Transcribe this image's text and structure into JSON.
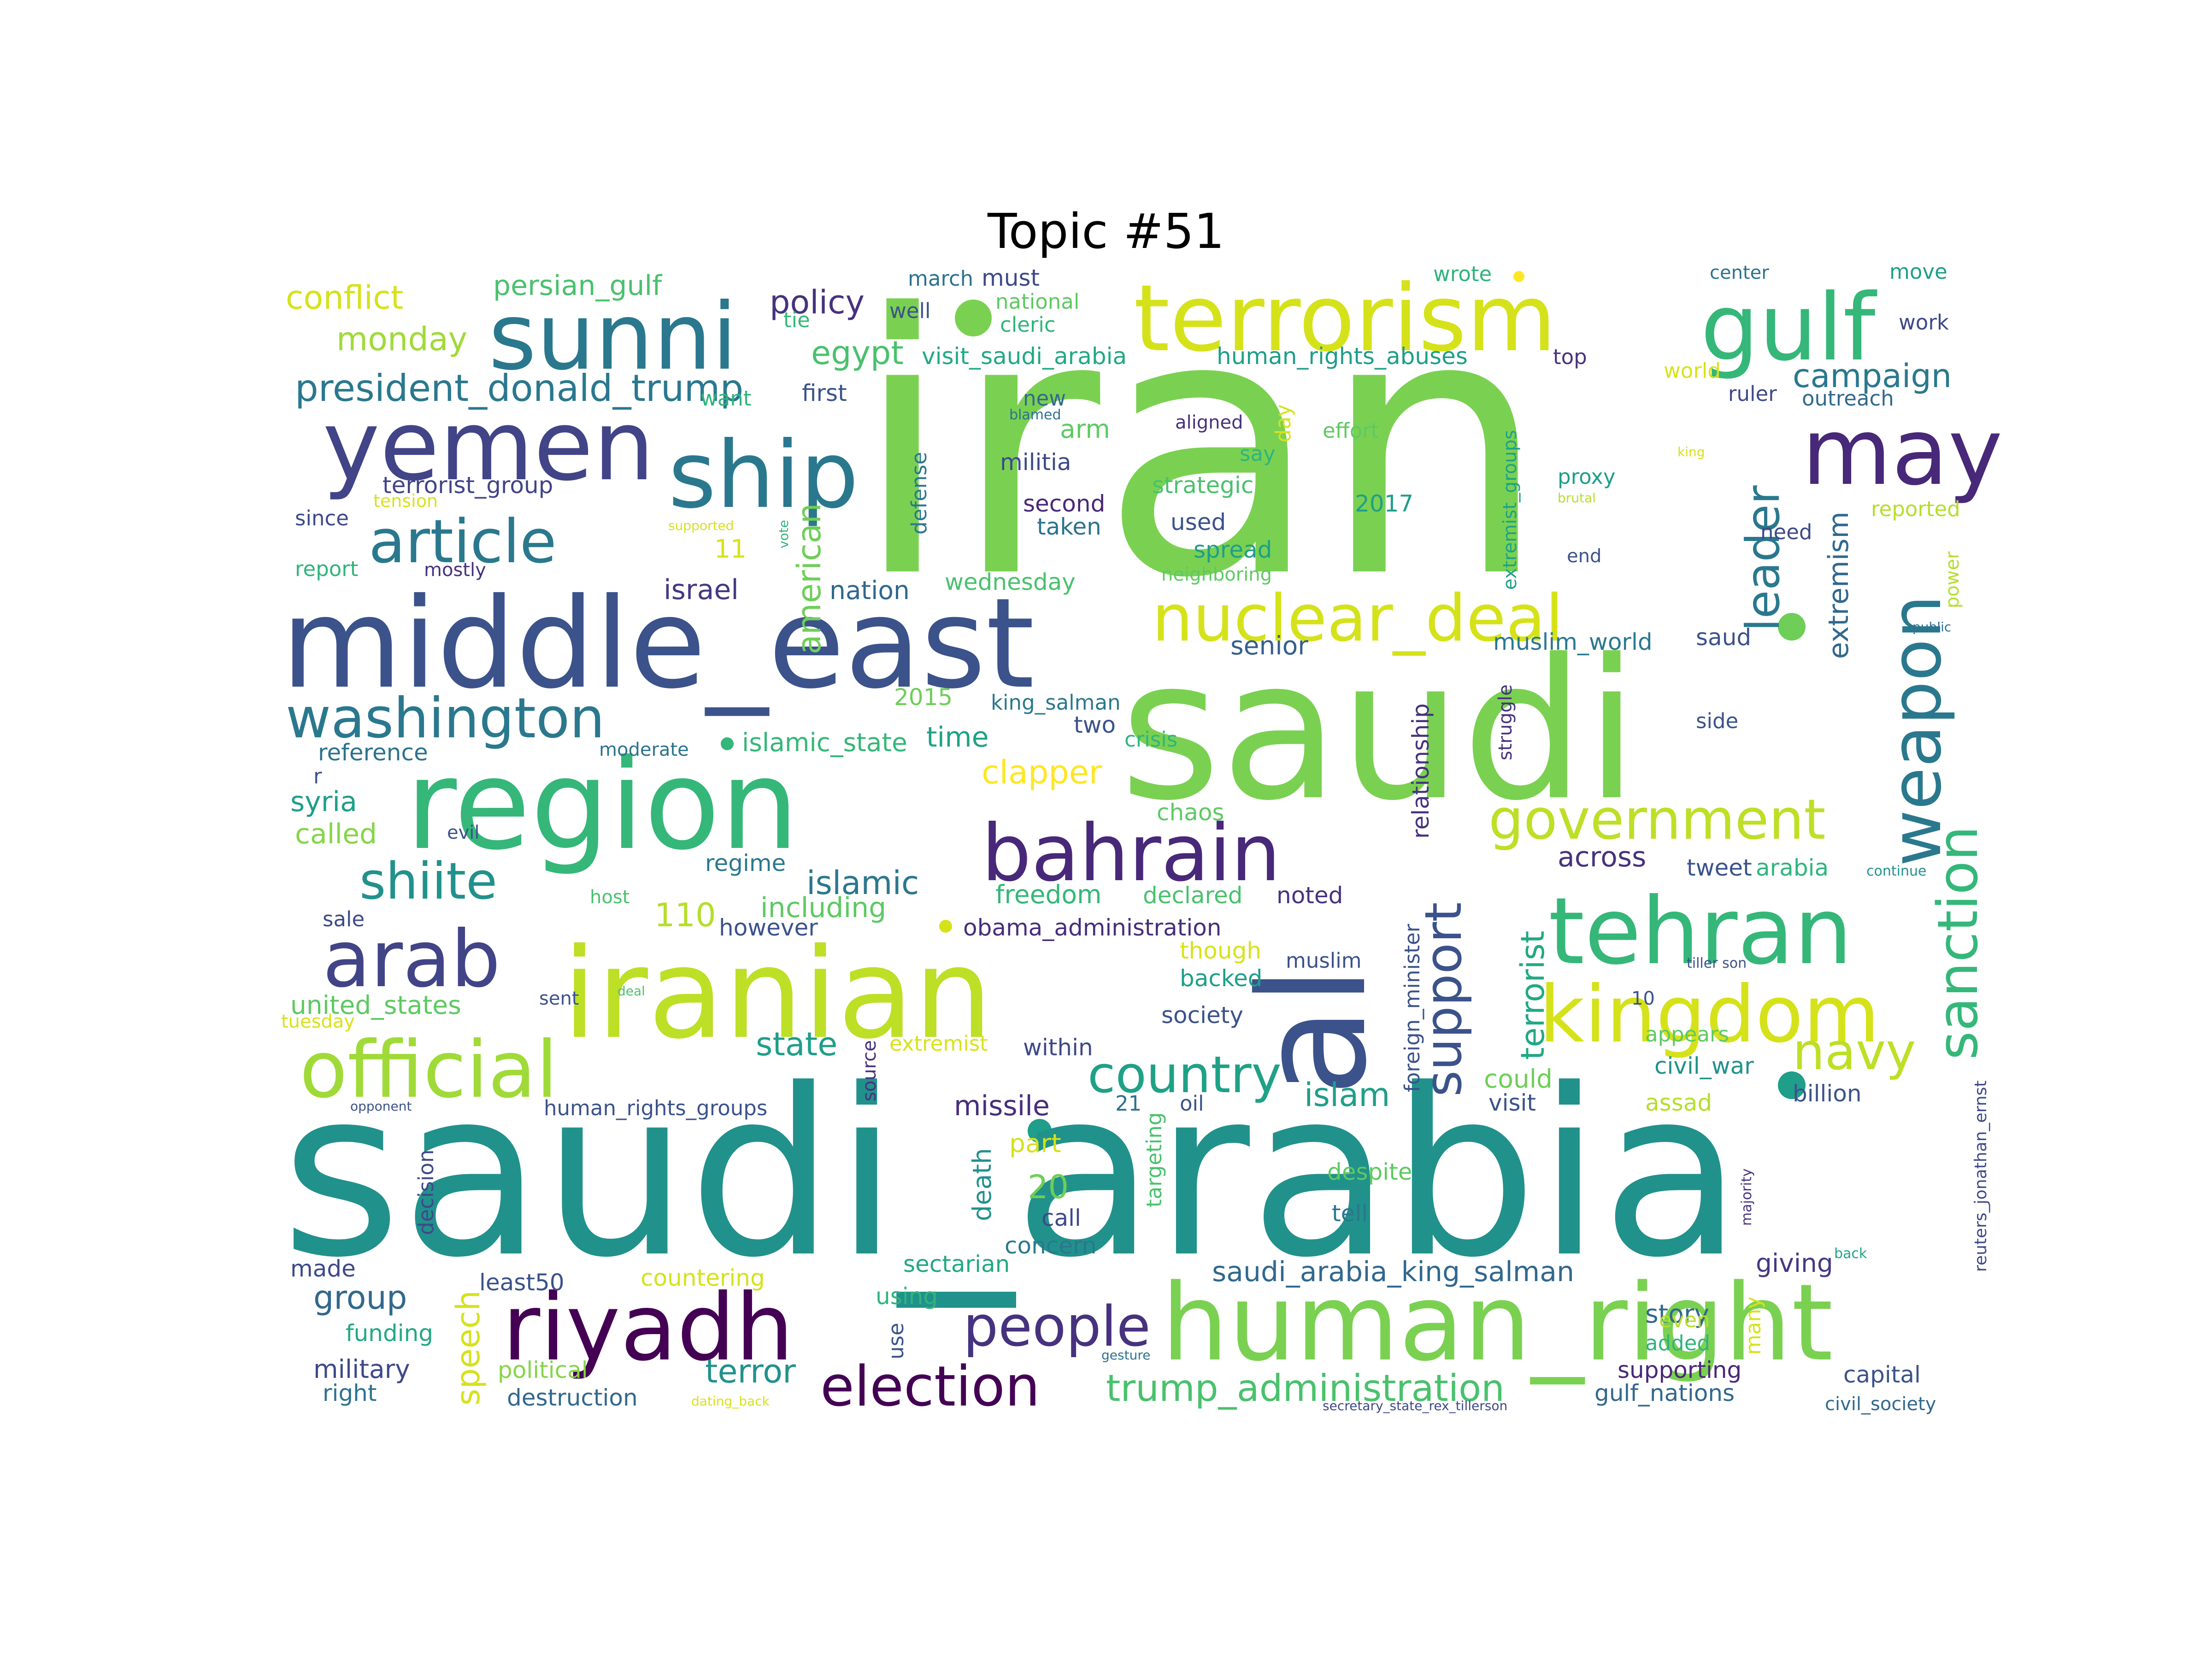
{
  "title": "Topic #51",
  "words": [
    {
      "text": "iran",
      "color": "#7ad151",
      "rot": 0
    },
    {
      "text": "saudi_arabia",
      "color": "#21918c",
      "rot": 0
    },
    {
      "text": "saudi",
      "color": "#7ad151",
      "rot": 0
    },
    {
      "text": "middle_east",
      "color": "#3b528b",
      "rot": 0
    },
    {
      "text": "region",
      "color": "#35b779",
      "rot": 0
    },
    {
      "text": "iranian",
      "color": "#bddf26",
      "rot": 0
    },
    {
      "text": "human_right",
      "color": "#7ad151",
      "rot": 0
    },
    {
      "text": "al",
      "color": "#3b528b",
      "rot": -90
    },
    {
      "text": "terrorism",
      "color": "#d5e21a",
      "rot": 0
    },
    {
      "text": "yemen",
      "color": "#414487",
      "rot": 0
    },
    {
      "text": "sunni",
      "color": "#2a788e",
      "rot": 0
    },
    {
      "text": "ship",
      "color": "#2a788e",
      "rot": 0
    },
    {
      "text": "gulf",
      "color": "#35b779",
      "rot": 0
    },
    {
      "text": "may",
      "color": "#482878",
      "rot": 0
    },
    {
      "text": "riyadh",
      "color": "#440154",
      "rot": 0
    },
    {
      "text": "official",
      "color": "#a0da39",
      "rot": 0
    },
    {
      "text": "arab",
      "color": "#414487",
      "rot": 0
    },
    {
      "text": "tehran",
      "color": "#35b779",
      "rot": 0
    },
    {
      "text": "bahrain",
      "color": "#482878",
      "rot": 0
    },
    {
      "text": "kingdom",
      "color": "#d5e21a",
      "rot": 0
    },
    {
      "text": "nuclear_deal",
      "color": "#d5e21a",
      "rot": 0
    },
    {
      "text": "weapon",
      "color": "#2a788e",
      "rot": -90
    },
    {
      "text": "sanction",
      "color": "#35b779",
      "rot": -90
    },
    {
      "text": "article",
      "color": "#2a788e",
      "rot": 0
    },
    {
      "text": "washington",
      "color": "#2a788e",
      "rot": 0
    },
    {
      "text": "government",
      "color": "#bddf26",
      "rot": 0
    },
    {
      "text": "election",
      "color": "#440154",
      "rot": 0
    },
    {
      "text": "people",
      "color": "#46327e",
      "rot": 0
    },
    {
      "text": "country",
      "color": "#1fa187",
      "rot": 0
    },
    {
      "text": "navy",
      "color": "#bddf26",
      "rot": 0
    },
    {
      "text": "shiite",
      "color": "#21918c",
      "rot": 0
    },
    {
      "text": "support",
      "color": "#3b528b",
      "rot": -90
    },
    {
      "text": "leader",
      "color": "#2a788e",
      "rot": -90
    },
    {
      "text": "president_donald_trump",
      "color": "#2a788e",
      "rot": 0
    },
    {
      "text": "trump_administration",
      "color": "#4ac16d",
      "rot": 0
    },
    {
      "text": "saudi_arabia_king_salman",
      "color": "#31688e",
      "rot": 0
    },
    {
      "text": "islamic",
      "color": "#2a788e",
      "rot": 0
    },
    {
      "text": "policy",
      "color": "#46327e",
      "rot": 0
    },
    {
      "text": "campaign",
      "color": "#2a788e",
      "rot": 0
    },
    {
      "text": "conflict",
      "color": "#d5e21a",
      "rot": 0
    },
    {
      "text": "monday",
      "color": "#a0da39",
      "rot": 0
    },
    {
      "text": "persian_gulf",
      "color": "#4ac16d",
      "rot": 0
    },
    {
      "text": "egypt",
      "color": "#4ac16d",
      "rot": 0
    },
    {
      "text": "american",
      "color": "#6ece58",
      "rot": -90
    },
    {
      "text": "terrorist",
      "color": "#22a884",
      "rot": -90
    },
    {
      "text": "extremism",
      "color": "#31688e",
      "rot": -90
    },
    {
      "text": "islam",
      "color": "#1f9e89",
      "rot": 0
    },
    {
      "text": "group",
      "color": "#31688e",
      "rot": 0
    },
    {
      "text": "terror",
      "color": "#21918c",
      "rot": 0
    },
    {
      "text": "speech",
      "color": "#d5e21a",
      "rot": -90
    },
    {
      "text": "clapper",
      "color": "#fde725",
      "rot": 0
    },
    {
      "text": "time",
      "color": "#1fa187",
      "rot": 0
    },
    {
      "text": "across",
      "color": "#46327e",
      "rot": 0
    },
    {
      "text": "missile",
      "color": "#472d7b",
      "rot": 0
    },
    {
      "text": "state",
      "color": "#1f9e89",
      "rot": 0
    },
    {
      "text": "freedom",
      "color": "#35b779",
      "rot": 0
    },
    {
      "text": "20",
      "color": "#6ece58",
      "rot": 0
    },
    {
      "text": "110",
      "color": "#b5de2b",
      "rot": 0
    },
    {
      "text": "including",
      "color": "#5ec962",
      "rot": 0
    },
    {
      "text": "story",
      "color": "#31688e",
      "rot": 0
    },
    {
      "text": "giving",
      "color": "#443983",
      "rot": 0
    },
    {
      "text": "supporting",
      "color": "#482878",
      "rot": 0
    },
    {
      "text": "gulf_nations",
      "color": "#31688e",
      "rot": 0
    },
    {
      "text": "death",
      "color": "#21918c",
      "rot": -90
    },
    {
      "text": "united_states",
      "color": "#5ec962",
      "rot": 0
    },
    {
      "text": "military",
      "color": "#3e4989",
      "rot": 0
    },
    {
      "text": "funding",
      "color": "#22a884",
      "rot": 0
    },
    {
      "text": "syria",
      "color": "#1f9e89",
      "rot": 0
    },
    {
      "text": "called",
      "color": "#86d549",
      "rot": 0
    },
    {
      "text": "reference",
      "color": "#2c728e",
      "rot": 0
    },
    {
      "text": "foreign_minister",
      "color": "#3b528b",
      "rot": -90
    },
    {
      "text": "relationship",
      "color": "#46327e",
      "rot": -90
    },
    {
      "text": "extremist_groups",
      "color": "#1fa187",
      "rot": -90
    },
    {
      "text": "reuters_jonathan_ernst",
      "color": "#3e4989",
      "rot": -90
    },
    {
      "text": "muslim_world",
      "color": "#2a788e",
      "rot": 0
    },
    {
      "text": "senior",
      "color": "#355f8d",
      "rot": 0
    },
    {
      "text": "king_salman",
      "color": "#2a788e",
      "rot": 0
    },
    {
      "text": "islamic_state",
      "color": "#35b779",
      "rot": 0
    },
    {
      "text": "obama_administration",
      "color": "#472d7b",
      "rot": 0
    },
    {
      "text": "visit_saudi_arabia",
      "color": "#22a884",
      "rot": 0
    },
    {
      "text": "human_rights_abuses",
      "color": "#1f9e89",
      "rot": 0
    },
    {
      "text": "terrorist_group",
      "color": "#414487",
      "rot": 0
    },
    {
      "text": "human_rights_groups",
      "color": "#3b528b",
      "rot": 0
    },
    {
      "text": "secretary_state_rex_tillerson",
      "color": "#3e4989",
      "rot": 0
    },
    {
      "text": "dating_back",
      "color": "#d8e219",
      "rot": 0
    },
    {
      "text": "gesture",
      "color": "#2c728e",
      "rot": 0
    },
    {
      "text": "civil_society",
      "color": "#31688e",
      "rot": 0
    },
    {
      "text": "civil_war",
      "color": "#21918c",
      "rot": 0
    },
    {
      "text": "capital",
      "color": "#3b528b",
      "rot": 0
    },
    {
      "text": "destruction",
      "color": "#31688e",
      "rot": 0
    },
    {
      "text": "political",
      "color": "#86d549",
      "rot": 0
    },
    {
      "text": "right",
      "color": "#2c728e",
      "rot": 0
    },
    {
      "text": "least50",
      "color": "#3b528b",
      "rot": 0
    },
    {
      "text": "countering",
      "color": "#d5e21a",
      "rot": 0
    },
    {
      "text": "sectarian",
      "color": "#22a884",
      "rot": 0
    },
    {
      "text": "using",
      "color": "#2fb47c",
      "rot": 0
    },
    {
      "text": "use",
      "color": "#3b528b",
      "rot": -90
    },
    {
      "text": "made",
      "color": "#3e4989",
      "rot": 0
    },
    {
      "text": "decision",
      "color": "#3e4989",
      "rot": -90
    },
    {
      "text": "concern",
      "color": "#2a788e",
      "rot": 0
    },
    {
      "text": "call",
      "color": "#3e4989",
      "rot": 0
    },
    {
      "text": "tell",
      "color": "#2a788e",
      "rot": 0
    },
    {
      "text": "despite",
      "color": "#5ec962",
      "rot": 0
    },
    {
      "text": "added",
      "color": "#2fb47c",
      "rot": 0
    },
    {
      "text": "even",
      "color": "#b5de2b",
      "rot": 0
    },
    {
      "text": "many",
      "color": "#d8e219",
      "rot": -90
    },
    {
      "text": "majority",
      "color": "#46327e",
      "rot": -90
    },
    {
      "text": "back",
      "color": "#20a486",
      "rot": 0
    },
    {
      "text": "billion",
      "color": "#3b528b",
      "rot": 0
    },
    {
      "text": "assad",
      "color": "#b5de2b",
      "rot": 0
    },
    {
      "text": "visit",
      "color": "#3b528b",
      "rot": 0
    },
    {
      "text": "could",
      "color": "#6ece58",
      "rot": 0
    },
    {
      "text": "appears",
      "color": "#5ec962",
      "rot": 0
    },
    {
      "text": "part",
      "color": "#d5e21a",
      "rot": 0
    },
    {
      "text": "21",
      "color": "#2c728e",
      "rot": 0
    },
    {
      "text": "oil",
      "color": "#3b528b",
      "rot": 0
    },
    {
      "text": "targeting",
      "color": "#4ac16d",
      "rot": -90
    },
    {
      "text": "source",
      "color": "#46327e",
      "rot": -90
    },
    {
      "text": "extremist",
      "color": "#d8e219",
      "rot": 0
    },
    {
      "text": "within",
      "color": "#3e4989",
      "rot": 0
    },
    {
      "text": "society",
      "color": "#3b528b",
      "rot": 0
    },
    {
      "text": "muslim",
      "color": "#3b528b",
      "rot": 0
    },
    {
      "text": "backed",
      "color": "#1f9e89",
      "rot": 0
    },
    {
      "text": "though",
      "color": "#d8e219",
      "rot": 0
    },
    {
      "text": "declared",
      "color": "#4ac16d",
      "rot": 0
    },
    {
      "text": "noted",
      "color": "#46327e",
      "rot": 0
    },
    {
      "text": "tiller son",
      "color": "#3b528b",
      "rot": 0
    },
    {
      "text": "10",
      "color": "#3b528b",
      "rot": 0
    },
    {
      "text": "tweet",
      "color": "#3b528b",
      "rot": 0
    },
    {
      "text": "arabia",
      "color": "#2fb47c",
      "rot": 0
    },
    {
      "text": "continue",
      "color": "#21918c",
      "rot": 0
    },
    {
      "text": "chaos",
      "color": "#5ec962",
      "rot": 0
    },
    {
      "text": "regime",
      "color": "#2a788e",
      "rot": 0
    },
    {
      "text": "however",
      "color": "#3b528b",
      "rot": 0
    },
    {
      "text": "crisis",
      "color": "#2fb47c",
      "rot": 0
    },
    {
      "text": "two",
      "color": "#3b528b",
      "rot": 0
    },
    {
      "text": "2015",
      "color": "#6ece58",
      "rot": 0
    },
    {
      "text": "wednesday",
      "color": "#4ac16d",
      "rot": 0
    },
    {
      "text": "nation",
      "color": "#31688e",
      "rot": 0
    },
    {
      "text": "israel",
      "color": "#443983",
      "rot": 0
    },
    {
      "text": "11",
      "color": "#d8e219",
      "rot": 0
    },
    {
      "text": "spread",
      "color": "#1f9e89",
      "rot": 0
    },
    {
      "text": "used",
      "color": "#3b528b",
      "rot": 0
    },
    {
      "text": "taken",
      "color": "#2c728e",
      "rot": 0
    },
    {
      "text": "second",
      "color": "#482878",
      "rot": 0
    },
    {
      "text": "strategic",
      "color": "#4ac16d",
      "rot": 0
    },
    {
      "text": "militia",
      "color": "#3e4989",
      "rot": 0
    },
    {
      "text": "say",
      "color": "#2fb47c",
      "rot": 0
    },
    {
      "text": "arm",
      "color": "#5ec962",
      "rot": 0
    },
    {
      "text": "aligned",
      "color": "#46327e",
      "rot": 0
    },
    {
      "text": "effort",
      "color": "#5ec962",
      "rot": 0
    },
    {
      "text": "day",
      "color": "#d8e219",
      "rot": -90
    },
    {
      "text": "2017",
      "color": "#1f9e89",
      "rot": 0
    },
    {
      "text": "neighboring",
      "color": "#5ec962",
      "rot": 0
    },
    {
      "text": "defense",
      "color": "#2a788e",
      "rot": -90
    },
    {
      "text": "blamed",
      "color": "#2c728e",
      "rot": 0
    },
    {
      "text": "new",
      "color": "#31688e",
      "rot": 0
    },
    {
      "text": "first",
      "color": "#3b528b",
      "rot": 0
    },
    {
      "text": "want",
      "color": "#2fb47c",
      "rot": 0
    },
    {
      "text": "tie",
      "color": "#35b779",
      "rot": 0
    },
    {
      "text": "well",
      "color": "#3b528b",
      "rot": 0
    },
    {
      "text": "cleric",
      "color": "#2fb47c",
      "rot": 0
    },
    {
      "text": "national",
      "color": "#5ec962",
      "rot": 0
    },
    {
      "text": "must",
      "color": "#3e4989",
      "rot": 0
    },
    {
      "text": "march",
      "color": "#2c728e",
      "rot": 0
    },
    {
      "text": "wrote",
      "color": "#2fb47c",
      "rot": 0
    },
    {
      "text": "top",
      "color": "#46327e",
      "rot": 0
    },
    {
      "text": "world",
      "color": "#d8e219",
      "rot": 0
    },
    {
      "text": "center",
      "color": "#2c728e",
      "rot": 0
    },
    {
      "text": "move",
      "color": "#1f9e89",
      "rot": 0
    },
    {
      "text": "work",
      "color": "#3e4989",
      "rot": 0
    },
    {
      "text": "ruler",
      "color": "#3e4989",
      "rot": 0
    },
    {
      "text": "outreach",
      "color": "#31688e",
      "rot": 0
    },
    {
      "text": "king",
      "color": "#d8e219",
      "rot": 0
    },
    {
      "text": "proxy",
      "color": "#1f9e89",
      "rot": 0
    },
    {
      "text": "brutal",
      "color": "#b5de2b",
      "rot": 0
    },
    {
      "text": "need",
      "color": "#3e4989",
      "rot": 0
    },
    {
      "text": "reported",
      "color": "#b5de2b",
      "rot": 0
    },
    {
      "text": "end",
      "color": "#3b528b",
      "rot": 0
    },
    {
      "text": "struggle",
      "color": "#46327e",
      "rot": -90
    },
    {
      "text": "power",
      "color": "#b5de2b",
      "rot": -90
    },
    {
      "text": "public",
      "color": "#2c728e",
      "rot": 0
    },
    {
      "text": "saud",
      "color": "#3b528b",
      "rot": 0
    },
    {
      "text": "side",
      "color": "#3b528b",
      "rot": 0
    },
    {
      "text": "report",
      "color": "#2fb47c",
      "rot": 0
    },
    {
      "text": "mostly",
      "color": "#46327e",
      "rot": 0
    },
    {
      "text": "since",
      "color": "#3e4989",
      "rot": 0
    },
    {
      "text": "tension",
      "color": "#d8e219",
      "rot": 0
    },
    {
      "text": "supported",
      "color": "#d8e219",
      "rot": 0
    },
    {
      "text": "vote",
      "color": "#2fb47c",
      "rot": -90
    },
    {
      "text": "moderate",
      "color": "#2c728e",
      "rot": 0
    },
    {
      "text": "r",
      "color": "#3b528b",
      "rot": 0
    },
    {
      "text": "evil",
      "color": "#3b528b",
      "rot": 0
    },
    {
      "text": "host",
      "color": "#4ac16d",
      "rot": 0
    },
    {
      "text": "sale",
      "color": "#3e4989",
      "rot": 0
    },
    {
      "text": "sent",
      "color": "#3b528b",
      "rot": 0
    },
    {
      "text": "deal",
      "color": "#4ac16d",
      "rot": 0
    },
    {
      "text": "tuesday",
      "color": "#d8e219",
      "rot": 0
    },
    {
      "text": "opponent",
      "color": "#3b528b",
      "rot": 0
    }
  ]
}
